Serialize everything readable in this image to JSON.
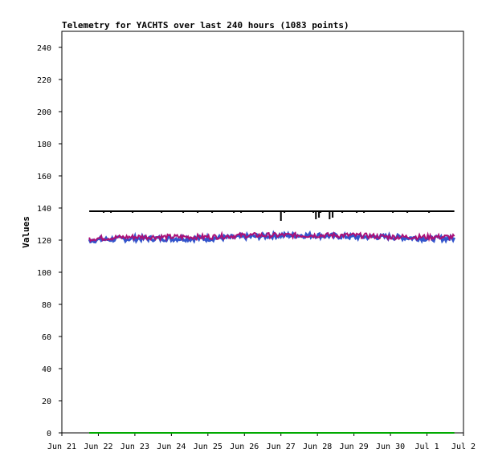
{
  "chart_data": {
    "type": "line",
    "title": "Telemetry for YACHTS over last 240 hours (1083 points)",
    "ylabel": "Values",
    "xlabel": "",
    "x_range": [
      "2022-06-21",
      "2022-07-02"
    ],
    "ylim": [
      0,
      250
    ],
    "grid": false,
    "legend": "none",
    "x_tick_labels": [
      "Jun 21",
      "Jun 22",
      "Jun 23",
      "Jun 24",
      "Jun 25",
      "Jun 26",
      "Jun 27",
      "Jun 28",
      "Jun 29",
      "Jun 30",
      "Jul 1",
      "Jul 2"
    ],
    "y_ticks": [
      0,
      20,
      40,
      60,
      80,
      100,
      120,
      140,
      160,
      180,
      200,
      220,
      240
    ],
    "series": [
      {
        "color": "#000000",
        "style": "step",
        "baseline": 138,
        "x": [
          "2022-06-21T18:00",
          "2022-07-01T18:00"
        ],
        "dips": [
          {
            "x": "2022-06-27T00:00",
            "y": 132
          },
          {
            "x": "2022-06-27T23:00",
            "y": 133
          },
          {
            "x": "2022-06-28T01:00",
            "y": 134
          },
          {
            "x": "2022-06-28T08:00",
            "y": 133
          },
          {
            "x": "2022-06-28T10:00",
            "y": 134
          }
        ]
      },
      {
        "color": "#3355cc",
        "style": "noisy",
        "x": [
          "2022-06-21T18:00",
          "2022-06-23T00:00",
          "2022-06-24T00:00",
          "2022-06-25T00:00",
          "2022-06-26T00:00",
          "2022-06-27T00:00",
          "2022-06-28T00:00",
          "2022-06-29T00:00",
          "2022-06-30T00:00",
          "2022-07-01T00:00",
          "2022-07-01T18:00"
        ],
        "y": [
          120,
          121,
          121,
          121,
          122,
          123,
          123,
          122,
          122,
          121,
          121
        ]
      },
      {
        "color": "#aa1177",
        "style": "noisy",
        "x": [
          "2022-06-21T18:00",
          "2022-06-23T00:00",
          "2022-06-24T00:00",
          "2022-06-25T00:00",
          "2022-06-26T00:00",
          "2022-06-27T00:00",
          "2022-06-28T00:00",
          "2022-06-29T00:00",
          "2022-06-30T00:00",
          "2022-07-01T00:00",
          "2022-07-01T18:00"
        ],
        "y": [
          121,
          122,
          122,
          122,
          123,
          123,
          123,
          123,
          122,
          122,
          122
        ]
      },
      {
        "color": "#00aa00",
        "style": "flat",
        "x": [
          "2022-06-21T18:00",
          "2022-07-01T18:00"
        ],
        "y": [
          0,
          0
        ]
      }
    ]
  }
}
